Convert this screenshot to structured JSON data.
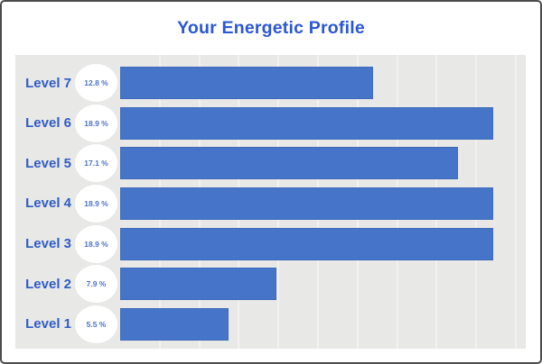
{
  "title": "Your Energetic Profile",
  "colors": {
    "title": "#2a57d6",
    "label": "#2e5cc6",
    "badge_text": "#4a73cd",
    "bar": "#4674c9",
    "bar_border": "#3c64ab",
    "plot_bg": "#e8e8e7",
    "gridline": "#f2f1ef",
    "badge_bg": "#ffffff",
    "frame_border": "#4b4b4b",
    "page_bg": "#ffffff"
  },
  "chart_data": {
    "type": "bar",
    "orientation": "horizontal",
    "title": "Your Energetic Profile",
    "categories": [
      "Level 7",
      "Level 6",
      "Level 5",
      "Level 4",
      "Level 3",
      "Level 2",
      "Level 1"
    ],
    "values": [
      12.8,
      18.9,
      17.1,
      18.9,
      18.9,
      7.9,
      5.5
    ],
    "value_labels": [
      "12.8 %",
      "18.9 %",
      "17.1 %",
      "18.9 %",
      "18.9 %",
      "7.9 %",
      "5.5 %"
    ],
    "xlabel": "",
    "ylabel": "",
    "xlim": [
      0,
      20
    ],
    "gridline_step": 2,
    "grid": true,
    "legend": false
  }
}
